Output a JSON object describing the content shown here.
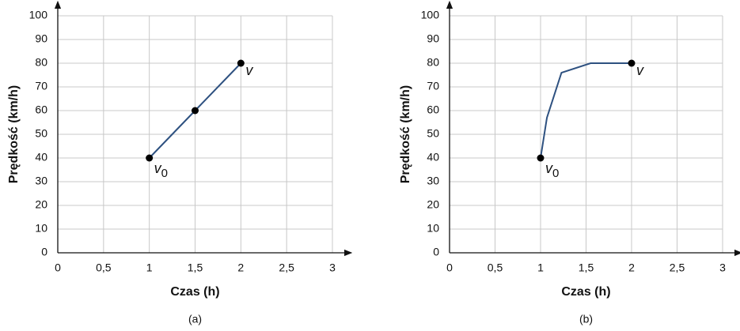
{
  "chart_data": [
    {
      "type": "line",
      "caption": "(a)",
      "x_label": "Czas (h)",
      "y_label": "Prędkość (km/h)",
      "xlim": [
        0,
        3
      ],
      "ylim": [
        0,
        100
      ],
      "xticks": [
        0,
        {
          "value": 0.5,
          "label": "0,5"
        },
        1,
        {
          "value": 1.5,
          "label": "1,5"
        },
        2,
        {
          "value": 2.5,
          "label": "2,5"
        },
        3
      ],
      "yticks": [
        0,
        10,
        20,
        30,
        40,
        50,
        60,
        70,
        80,
        90,
        100
      ],
      "grid": true,
      "x": [
        1,
        1.5,
        2
      ],
      "series": [
        {
          "color": "#2e5180",
          "values": [
            40,
            60,
            80
          ]
        }
      ],
      "markers": [
        0,
        1,
        2
      ],
      "annotations": [
        {
          "label": "v",
          "subscript": "0"
        },
        {
          "label": "v"
        }
      ]
    },
    {
      "type": "line",
      "caption": "(b)",
      "x_label": "Czas (h)",
      "y_label": "Prędkość (km/h)",
      "xlim": [
        0,
        3
      ],
      "ylim": [
        0,
        100
      ],
      "xticks": [
        0,
        {
          "value": 0.5,
          "label": "0,5"
        },
        1,
        {
          "value": 1.5,
          "label": "1,5"
        },
        2,
        {
          "value": 2.5,
          "label": "2,5"
        },
        3
      ],
      "yticks": [
        0,
        10,
        20,
        30,
        40,
        50,
        60,
        70,
        80,
        90,
        100
      ],
      "grid": true,
      "x": [
        1,
        1.07,
        1.23,
        1.55,
        2
      ],
      "series": [
        {
          "color": "#2e5180",
          "values": [
            40,
            57,
            76,
            80,
            80
          ]
        }
      ],
      "markers": [
        0,
        4
      ],
      "annotations": [
        {
          "label": "v",
          "subscript": "0"
        },
        {
          "label": "v"
        }
      ]
    }
  ]
}
